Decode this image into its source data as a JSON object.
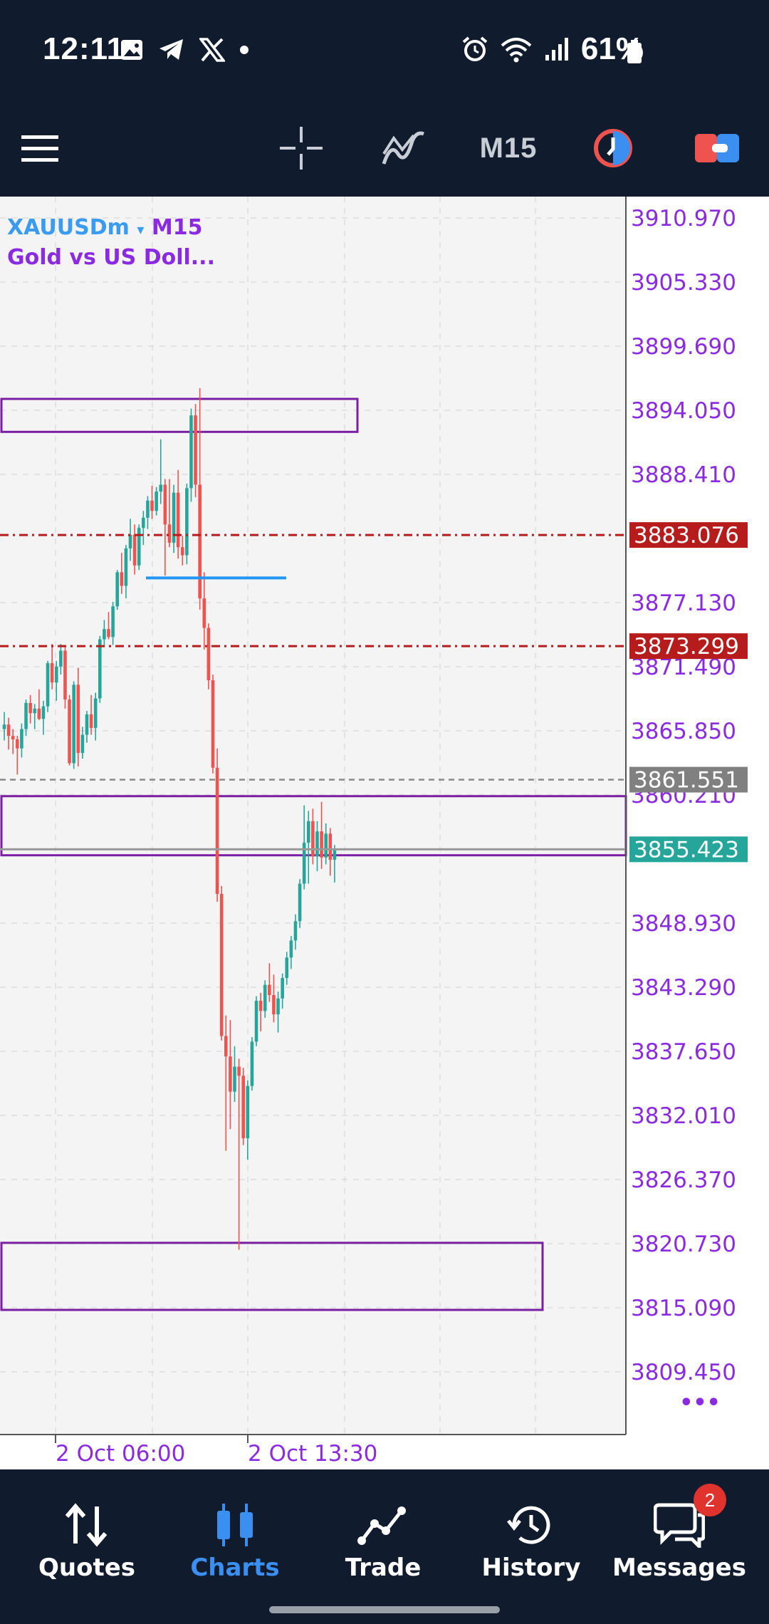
{
  "status_bar": {
    "time": "12:11",
    "battery": "61%",
    "left_icons": [
      "image-icon",
      "telegram-icon",
      "x-icon",
      "dot-icon"
    ],
    "right_icons": [
      "alarm-icon",
      "wifi-icon",
      "signal-icon",
      "battery-icon"
    ]
  },
  "toolbar": {
    "timeframe": "M15",
    "icons": [
      "menu-icon",
      "crosshair-icon",
      "indicators-icon",
      "timeframe-label",
      "clock-icon",
      "trade-ticket-icon"
    ]
  },
  "chart": {
    "symbol": "XAUUSDm",
    "symbol_arrow": "▾",
    "timeframe": "M15",
    "description": "Gold vs US Doll...",
    "more_glyph": "•••",
    "colors": {
      "bull": "#26a69a",
      "bear": "#ef5350",
      "axis_text": "#8a2be2",
      "zone_border": "#7b1fa2",
      "red_line": "#b71c1c",
      "support_line": "#2196f3",
      "current_price_bg": "#26a69a",
      "gray_line_bg": "#808080"
    },
    "price_labels": [
      "3910.970",
      "3905.330",
      "3899.690",
      "3894.050",
      "3888.410",
      "3877.130",
      "3871.490",
      "3865.850",
      "3860.210",
      "3848.930",
      "3843.290",
      "3837.650",
      "3832.010",
      "3826.370",
      "3820.730",
      "3815.090",
      "3809.450"
    ],
    "time_labels": [
      "2 Oct 06:00",
      "2 Oct 13:30"
    ],
    "levels": [
      {
        "name": "resistance-line-upper",
        "price": "3883.076",
        "style": "red-dashdot"
      },
      {
        "name": "resistance-line-lower",
        "price": "3873.299",
        "style": "red-dashdot"
      },
      {
        "name": "prior-level-line",
        "price": "3861.551",
        "style": "gray-dashed"
      },
      {
        "name": "current-price-line",
        "price": "3855.423",
        "style": "solid-gray"
      }
    ]
  },
  "bottom_nav": {
    "items": [
      {
        "label": "Quotes",
        "icon": "quotes-icon"
      },
      {
        "label": "Charts",
        "icon": "charts-icon"
      },
      {
        "label": "Trade",
        "icon": "trade-icon"
      },
      {
        "label": "History",
        "icon": "history-icon"
      },
      {
        "label": "Messages",
        "icon": "messages-icon"
      }
    ],
    "active": "Charts",
    "messages_badge": "2"
  }
}
